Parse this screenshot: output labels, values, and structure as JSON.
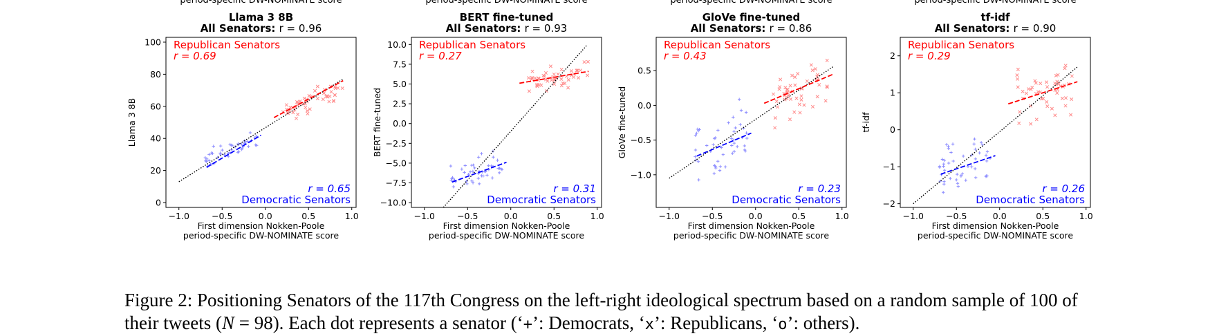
{
  "top_cutoff_label": "period-specific DW-NOMINATE score",
  "chart_data": [
    {
      "type": "scatter",
      "title": "Llama 3 8B",
      "subtitle_label": "All Senators:",
      "subtitle_r": "r = 0.96",
      "xlabel_line1": "First dimension Nokken-Poole",
      "xlabel_line2": "period-specific DW-NOMINATE score",
      "ylabel": "Llama 3 8B",
      "xlim": [
        -1.15,
        1.05
      ],
      "ylim": [
        -3,
        103
      ],
      "xticks": [
        -1.0,
        -0.5,
        0.0,
        0.5,
        1.0
      ],
      "xtick_labels": [
        "−1.0",
        "−0.5",
        "0.0",
        "0.5",
        "1.0"
      ],
      "yticks": [
        0,
        20,
        40,
        60,
        80,
        100
      ],
      "ytick_labels": [
        "0",
        "20",
        "40",
        "60",
        "80",
        "100"
      ],
      "rep_label": "Republican Senators",
      "rep_r": "r = 0.69",
      "dem_label": "Democratic Senators",
      "dem_r": "r = 0.65",
      "overall_fit": {
        "x": [
          -1.0,
          0.9
        ],
        "y": [
          13,
          77
        ]
      },
      "rep_fit": {
        "x": [
          0.1,
          0.9
        ],
        "y": [
          53,
          76
        ]
      },
      "dem_fit": {
        "x": [
          -0.68,
          -0.05
        ],
        "y": [
          22,
          42
        ]
      },
      "rep_cloud": {
        "x": [
          0.2,
          0.9
        ],
        "center": 64,
        "slope": 18,
        "spread": 11,
        "n": 50
      },
      "dem_cloud": {
        "x": [
          -0.7,
          -0.1
        ],
        "center": 33,
        "slope": 22,
        "spread": 9,
        "n": 48
      }
    },
    {
      "type": "scatter",
      "title": "BERT fine-tuned",
      "subtitle_label": "All Senators:",
      "subtitle_r": "r = 0.93",
      "xlabel_line1": "First dimension Nokken-Poole",
      "xlabel_line2": "period-specific DW-NOMINATE score",
      "ylabel": "BERT fine-tuned",
      "xlim": [
        -1.15,
        1.05
      ],
      "ylim": [
        -10.6,
        10.9
      ],
      "xticks": [
        -1.0,
        -0.5,
        0.0,
        0.5,
        1.0
      ],
      "xtick_labels": [
        "−1.0",
        "−0.5",
        "0.0",
        "0.5",
        "1.0"
      ],
      "yticks": [
        -10.0,
        -7.5,
        -5.0,
        -2.5,
        0.0,
        2.5,
        5.0,
        7.5,
        10.0
      ],
      "ytick_labels": [
        "−10.0",
        "−7.5",
        "−5.0",
        "−2.5",
        "0.0",
        "2.5",
        "5.0",
        "7.5",
        "10.0"
      ],
      "rep_label": "Republican Senators",
      "rep_r": "r = 0.27",
      "dem_label": "Democratic Senators",
      "dem_r": "r = 0.31",
      "overall_fit": {
        "x": [
          -0.78,
          0.88
        ],
        "y": [
          -10.6,
          9.9
        ]
      },
      "rep_fit": {
        "x": [
          0.1,
          0.9
        ],
        "y": [
          5.1,
          6.6
        ]
      },
      "dem_fit": {
        "x": [
          -0.68,
          -0.05
        ],
        "y": [
          -7.4,
          -4.9
        ]
      },
      "rep_cloud": {
        "x": [
          0.2,
          0.9
        ],
        "center": 5.8,
        "slope": 1.8,
        "spread": 2.6,
        "n": 50
      },
      "dem_cloud": {
        "x": [
          -0.7,
          -0.1
        ],
        "center": -6.1,
        "slope": 3.0,
        "spread": 3.2,
        "n": 48
      }
    },
    {
      "type": "scatter",
      "title": "GloVe fine-tuned",
      "subtitle_label": "All Senators:",
      "subtitle_r": "r = 0.86",
      "xlabel_line1": "First dimension Nokken-Poole",
      "xlabel_line2": "period-specific DW-NOMINATE score",
      "ylabel": "GloVe fine-tuned",
      "xlim": [
        -1.15,
        1.05
      ],
      "ylim": [
        -1.47,
        0.98
      ],
      "xticks": [
        -1.0,
        -0.5,
        0.0,
        0.5,
        1.0
      ],
      "xtick_labels": [
        "−1.0",
        "−0.5",
        "0.0",
        "0.5",
        "1.0"
      ],
      "yticks": [
        -1.0,
        -0.5,
        0.0,
        0.5
      ],
      "ytick_labels": [
        "−1.0",
        "−0.5",
        "0.0",
        "0.5"
      ],
      "rep_label": "Republican Senators",
      "rep_r": "r = 0.43",
      "dem_label": "Democratic Senators",
      "dem_r": "r = 0.23",
      "overall_fit": {
        "x": [
          -1.0,
          0.9
        ],
        "y": [
          -1.05,
          0.56
        ]
      },
      "rep_fit": {
        "x": [
          0.1,
          0.9
        ],
        "y": [
          0.03,
          0.45
        ]
      },
      "dem_fit": {
        "x": [
          -0.68,
          -0.05
        ],
        "y": [
          -0.73,
          -0.4
        ]
      },
      "rep_cloud": {
        "x": [
          0.2,
          0.9
        ],
        "center": 0.3,
        "slope": 0.45,
        "spread": 0.75,
        "n": 50
      },
      "dem_cloud": {
        "x": [
          -0.7,
          -0.1
        ],
        "center": -0.6,
        "slope": 0.35,
        "spread": 0.9,
        "n": 48
      }
    },
    {
      "type": "scatter",
      "title": "tf-idf",
      "subtitle_label": "All Senators:",
      "subtitle_r": "r = 0.90",
      "xlabel_line1": "First dimension Nokken-Poole",
      "xlabel_line2": "period-specific DW-NOMINATE score",
      "ylabel": "tf-idf",
      "xlim": [
        -1.15,
        1.05
      ],
      "ylim": [
        -2.1,
        2.5
      ],
      "xticks": [
        -1.0,
        -0.5,
        0.0,
        0.5,
        1.0
      ],
      "xtick_labels": [
        "−1.0",
        "−0.5",
        "0.0",
        "0.5",
        "1.0"
      ],
      "yticks": [
        -2,
        -1,
        0,
        1,
        2
      ],
      "ytick_labels": [
        "−2",
        "−1",
        "0",
        "1",
        "2"
      ],
      "rep_label": "Republican Senators",
      "rep_r": "r = 0.29",
      "dem_label": "Democratic Senators",
      "dem_r": "r = 0.26",
      "overall_fit": {
        "x": [
          -1.0,
          0.9
        ],
        "y": [
          -2.0,
          1.7
        ]
      },
      "rep_fit": {
        "x": [
          0.1,
          0.9
        ],
        "y": [
          0.7,
          1.3
        ]
      },
      "dem_fit": {
        "x": [
          -0.68,
          -0.05
        ],
        "y": [
          -1.2,
          -0.7
        ]
      },
      "rep_cloud": {
        "x": [
          0.2,
          0.9
        ],
        "center": 1.1,
        "slope": 0.7,
        "spread": 1.4,
        "n": 50
      },
      "dem_cloud": {
        "x": [
          -0.7,
          -0.1
        ],
        "center": -0.95,
        "slope": 0.6,
        "spread": 1.2,
        "n": 48
      }
    }
  ],
  "colors": {
    "republican": "#ff0000",
    "democratic": "#0000ff",
    "rep_points": "#ff8a8a",
    "dem_points": "#8c8cff",
    "overall": "#000000"
  },
  "caption": {
    "prefix": "Figure 2: Positioning Senators of the 117th Congress on the left-right ideological spectrum based on a random sample of 100 of their tweets (",
    "n_symbol": "N",
    "n_value": " = 98). Each dot represents a senator (‘",
    "plus_marker": "+",
    "dem_text": "’: Democrats, ‘",
    "x_marker": "x",
    "rep_text": "’: Republicans, ‘",
    "o_marker": "o",
    "other_text": "’: others)."
  }
}
